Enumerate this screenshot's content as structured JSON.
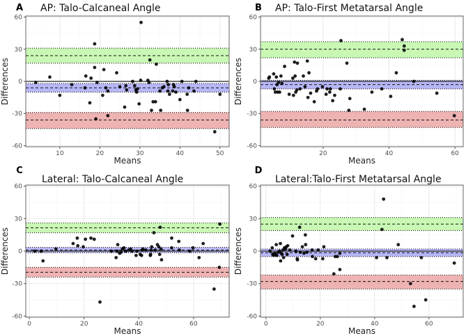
{
  "colors": {
    "upper_band": "#bff7a8",
    "bias_band": "#aaaaf6",
    "lower_band": "#eba6a6",
    "point": "#000000"
  },
  "chart_data": [
    {
      "type": "scatter",
      "letter": "A",
      "title": "AP: Talo-Calcaneal Angle",
      "xlabel": "Means",
      "ylabel": "Differences",
      "xlim": [
        1.5,
        52.3
      ],
      "ylim": [
        -61,
        61
      ],
      "xticks": [
        10,
        20,
        30,
        40,
        50
      ],
      "yticks": [
        -60,
        -30,
        0,
        30,
        60
      ],
      "grid": true,
      "bias": {
        "mean": -6,
        "lo": -10,
        "hi": -2
      },
      "upper_loa": {
        "mean": 24,
        "lo": 17,
        "hi": 31
      },
      "lower_loa": {
        "mean": -36,
        "lo": -44,
        "hi": -29
      },
      "points": [
        [
          4,
          -1
        ],
        [
          7.5,
          4
        ],
        [
          10,
          -13
        ],
        [
          13,
          -3
        ],
        [
          16.3,
          -6
        ],
        [
          16.5,
          5
        ],
        [
          17.5,
          -20
        ],
        [
          17.8,
          3
        ],
        [
          18.7,
          13
        ],
        [
          18.7,
          35
        ],
        [
          19,
          -35
        ],
        [
          19.3,
          -1
        ],
        [
          20.7,
          -13
        ],
        [
          21,
          11
        ],
        [
          21.5,
          -6
        ],
        [
          22,
          -9
        ],
        [
          22,
          -32
        ],
        [
          24.2,
          8
        ],
        [
          25,
          -5
        ],
        [
          26.2,
          -24
        ],
        [
          26.5,
          -4
        ],
        [
          26.7,
          -8
        ],
        [
          28.2,
          0
        ],
        [
          28.7,
          -4
        ],
        [
          29,
          -8
        ],
        [
          29.2,
          -10
        ],
        [
          29.4,
          -7
        ],
        [
          29.8,
          -21
        ],
        [
          30.2,
          1
        ],
        [
          30.3,
          55
        ],
        [
          32,
          1
        ],
        [
          32.3,
          -1
        ],
        [
          32.5,
          20
        ],
        [
          32.9,
          -27
        ],
        [
          33.3,
          -19
        ],
        [
          33.9,
          -19
        ],
        [
          34.1,
          16
        ],
        [
          35,
          -9
        ],
        [
          35.2,
          -27
        ],
        [
          35.6,
          -6
        ],
        [
          36,
          -5
        ],
        [
          36.8,
          0
        ],
        [
          37,
          -9
        ],
        [
          37.1,
          -3
        ],
        [
          37.4,
          -12
        ],
        [
          38.2,
          -9
        ],
        [
          38.4,
          -3
        ],
        [
          38.6,
          -5
        ],
        [
          39,
          -10
        ],
        [
          40,
          -17
        ],
        [
          40.5,
          0
        ],
        [
          41.8,
          -12
        ],
        [
          41.9,
          -27
        ],
        [
          42.2,
          -6
        ],
        [
          43.5,
          -9
        ],
        [
          44,
          0
        ],
        [
          48.7,
          -47
        ],
        [
          50,
          -12
        ]
      ]
    },
    {
      "type": "scatter",
      "letter": "B",
      "title": "AP: Talo-First Metatarsal Angle",
      "xlabel": "Means",
      "ylabel": "Differences",
      "xlim": [
        1.0,
        62.5
      ],
      "ylim": [
        -61,
        61
      ],
      "xticks": [
        20,
        40,
        60
      ],
      "yticks": [
        -60,
        -30,
        0,
        30,
        60
      ],
      "grid": true,
      "bias": {
        "mean": -3,
        "lo": -7,
        "hi": 1
      },
      "upper_loa": {
        "mean": 30,
        "lo": 22,
        "hi": 37
      },
      "lower_loa": {
        "mean": -36,
        "lo": -43,
        "hi": -28
      },
      "points": [
        [
          3.5,
          3
        ],
        [
          3.7,
          4
        ],
        [
          5,
          7
        ],
        [
          5.2,
          -7
        ],
        [
          5.5,
          -10
        ],
        [
          5.8,
          4
        ],
        [
          6,
          -3
        ],
        [
          6.2,
          -10
        ],
        [
          6.5,
          -1
        ],
        [
          6.8,
          -10
        ],
        [
          7.2,
          5
        ],
        [
          7.5,
          -2
        ],
        [
          8.3,
          14
        ],
        [
          9.7,
          -12
        ],
        [
          10.8,
          3
        ],
        [
          11,
          -13
        ],
        [
          11.3,
          18
        ],
        [
          11.5,
          5
        ],
        [
          11.7,
          -10
        ],
        [
          12,
          -8
        ],
        [
          12.2,
          17
        ],
        [
          13,
          -7
        ],
        [
          14,
          5
        ],
        [
          14.5,
          -5
        ],
        [
          15.2,
          19
        ],
        [
          15.4,
          -15
        ],
        [
          15.7,
          8
        ],
        [
          16.2,
          -11
        ],
        [
          17.3,
          -19
        ],
        [
          18,
          -9
        ],
        [
          18.3,
          -7
        ],
        [
          19.8,
          -5
        ],
        [
          20.9,
          -12
        ],
        [
          21.2,
          -7
        ],
        [
          22,
          -10
        ],
        [
          22.2,
          -7
        ],
        [
          22.9,
          -18
        ],
        [
          23.5,
          -13
        ],
        [
          25.2,
          -7
        ],
        [
          25.4,
          38
        ],
        [
          27.2,
          17
        ],
        [
          27.8,
          -27
        ],
        [
          28.1,
          -16
        ],
        [
          32.5,
          -26
        ],
        [
          34.8,
          -10
        ],
        [
          37.8,
          -7
        ],
        [
          40.5,
          -14
        ],
        [
          42.2,
          8
        ],
        [
          44,
          39
        ],
        [
          44.6,
          33
        ],
        [
          44.6,
          29
        ],
        [
          47.5,
          0
        ],
        [
          54.5,
          -11
        ],
        [
          59.8,
          -32
        ]
      ]
    },
    {
      "type": "scatter",
      "letter": "C",
      "title": "Lateral: Talo-Calcaneal Angle",
      "xlabel": "Means",
      "ylabel": "Differences",
      "xlim": [
        -1.3,
        73
      ],
      "ylim": [
        -61,
        61
      ],
      "xticks": [
        0,
        20,
        40,
        60
      ],
      "yticks": [
        -60,
        -30,
        0,
        30,
        60
      ],
      "grid": true,
      "bias": {
        "mean": 1,
        "lo": -1.5,
        "hi": 3.5
      },
      "upper_loa": {
        "mean": 21.5,
        "lo": 17,
        "hi": 26
      },
      "lower_loa": {
        "mean": -19.5,
        "lo": -24,
        "hi": -15
      },
      "points": [
        [
          2,
          0
        ],
        [
          4.3,
          0
        ],
        [
          5,
          -9
        ],
        [
          9.7,
          2
        ],
        [
          16,
          7
        ],
        [
          17.5,
          12
        ],
        [
          17.7,
          5
        ],
        [
          19.7,
          4
        ],
        [
          20.5,
          11
        ],
        [
          22.5,
          12
        ],
        [
          23.7,
          11
        ],
        [
          25.8,
          -47
        ],
        [
          30,
          0
        ],
        [
          31.7,
          -6
        ],
        [
          32,
          0
        ],
        [
          32.3,
          6
        ],
        [
          33,
          -2
        ],
        [
          33.5,
          -1
        ],
        [
          34,
          2
        ],
        [
          34.6,
          3
        ],
        [
          35.2,
          0
        ],
        [
          36.3,
          1
        ],
        [
          37,
          2
        ],
        [
          37.5,
          0
        ],
        [
          39,
          -4
        ],
        [
          39.3,
          0
        ],
        [
          40.5,
          -3
        ],
        [
          41,
          -4
        ],
        [
          41.2,
          1
        ],
        [
          41.5,
          2
        ],
        [
          42.6,
          1
        ],
        [
          44.2,
          -4
        ],
        [
          44.3,
          -3
        ],
        [
          44.5,
          1
        ],
        [
          44.7,
          4
        ],
        [
          45.5,
          17
        ],
        [
          46,
          1
        ],
        [
          46.8,
          6
        ],
        [
          47.3,
          4
        ],
        [
          47.6,
          -3
        ],
        [
          47.8,
          22
        ],
        [
          48.1,
          2
        ],
        [
          48.3,
          -8
        ],
        [
          52,
          12
        ],
        [
          52,
          3
        ],
        [
          54.6,
          9
        ],
        [
          54.8,
          1
        ],
        [
          58.6,
          0
        ],
        [
          59.8,
          3
        ],
        [
          62,
          -6
        ],
        [
          63.5,
          7
        ],
        [
          67.5,
          -35
        ],
        [
          69.4,
          -15
        ],
        [
          69.6,
          25
        ]
      ]
    },
    {
      "type": "scatter",
      "letter": "D",
      "title": "Lateral:Talo-First Metatarsal Angle",
      "xlabel": "Means",
      "ylabel": "Differences",
      "xlim": [
        -2,
        72.6
      ],
      "ylim": [
        -61,
        61
      ],
      "xticks": [
        0,
        20,
        40,
        60
      ],
      "yticks": [
        -60,
        -30,
        0,
        30,
        60
      ],
      "grid": true,
      "bias": {
        "mean": -1.5,
        "lo": -5,
        "hi": 2
      },
      "upper_loa": {
        "mean": 25,
        "lo": 19,
        "hi": 31
      },
      "lower_loa": {
        "mean": -28,
        "lo": -35,
        "hi": -22
      },
      "points": [
        [
          1.5,
          0
        ],
        [
          2.3,
          3
        ],
        [
          2.5,
          -3
        ],
        [
          2.8,
          -4
        ],
        [
          3.2,
          -2
        ],
        [
          3.5,
          -3
        ],
        [
          3.8,
          6
        ],
        [
          4,
          -4
        ],
        [
          4.5,
          -1
        ],
        [
          5,
          0
        ],
        [
          5.3,
          7
        ],
        [
          5.4,
          -9
        ],
        [
          5.6,
          -2
        ],
        [
          6,
          -3
        ],
        [
          6.3,
          1
        ],
        [
          6.5,
          -6
        ],
        [
          6.8,
          3
        ],
        [
          7.2,
          2
        ],
        [
          7.5,
          4
        ],
        [
          7.8,
          -3
        ],
        [
          8,
          5
        ],
        [
          8.8,
          1
        ],
        [
          9.8,
          14
        ],
        [
          11,
          0
        ],
        [
          11.5,
          -7
        ],
        [
          11.6,
          -8
        ],
        [
          12.4,
          22
        ],
        [
          12.6,
          -1
        ],
        [
          13.4,
          4
        ],
        [
          14,
          -2
        ],
        [
          14.5,
          15
        ],
        [
          14.6,
          6
        ],
        [
          15.1,
          -1
        ],
        [
          17,
          1
        ],
        [
          17.1,
          -5
        ],
        [
          18.3,
          -7
        ],
        [
          19.2,
          1
        ],
        [
          20.9,
          -7
        ],
        [
          21.3,
          4
        ],
        [
          25,
          -21
        ],
        [
          25.5,
          -5
        ],
        [
          26.3,
          -5
        ],
        [
          27.2,
          -17
        ],
        [
          27.2,
          -2
        ],
        [
          40.7,
          -6
        ],
        [
          42.7,
          20
        ],
        [
          43.3,
          48
        ],
        [
          44.5,
          -6
        ],
        [
          48.7,
          6
        ],
        [
          53.2,
          -30
        ],
        [
          54.5,
          -51
        ],
        [
          57.2,
          -6
        ],
        [
          58.8,
          -45
        ],
        [
          69.3,
          -11
        ]
      ]
    }
  ]
}
